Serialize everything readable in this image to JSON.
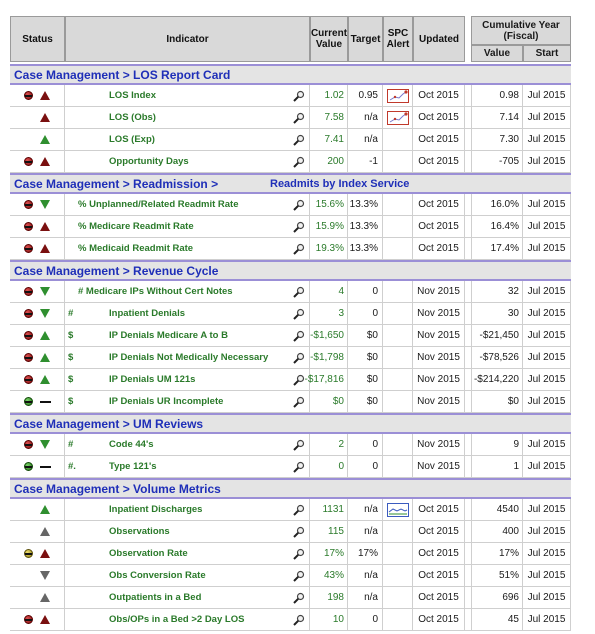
{
  "headers": {
    "status": "Status",
    "indicator": "Indicator",
    "current": "Current Value",
    "target": "Target",
    "spc": "SPC Alert",
    "updated": "Updated",
    "cumulative": "Cumulative Year (Fiscal)",
    "value": "Value",
    "start": "Start"
  },
  "sections": [
    {
      "title": "Case Management > LOS Report Card",
      "extra": "",
      "rows": [
        {
          "dot": "red",
          "trend": "up-red",
          "prefix": "",
          "name": "LOS Index",
          "indent": "deep",
          "current": "1.02",
          "target": "0.95",
          "spc": "red",
          "updated": "Oct 2015",
          "cum": "0.98",
          "start": "Jul 2015"
        },
        {
          "dot": "none",
          "trend": "up-red",
          "prefix": "",
          "name": "LOS (Obs)",
          "indent": "deep",
          "current": "7.58",
          "target": "n/a",
          "spc": "red",
          "updated": "Oct 2015",
          "cum": "7.14",
          "start": "Jul 2015"
        },
        {
          "dot": "none",
          "trend": "up-green",
          "prefix": "",
          "name": "LOS (Exp)",
          "indent": "deep",
          "current": "7.41",
          "target": "n/a",
          "spc": "",
          "updated": "Oct 2015",
          "cum": "7.30",
          "start": "Jul 2015"
        },
        {
          "dot": "red",
          "trend": "up-red",
          "prefix": "",
          "name": "Opportunity Days",
          "indent": "deep",
          "current": "200",
          "target": "-1",
          "spc": "",
          "updated": "Oct 2015",
          "cum": "-705",
          "start": "Jul 2015"
        }
      ]
    },
    {
      "title": "Case Management > Readmission >",
      "extra": "Readmits by Index Service",
      "rows": [
        {
          "dot": "red",
          "trend": "down-green",
          "prefix": "",
          "name": "% Unplanned/Related Readmit Rate",
          "indent": "none",
          "current": "15.6%",
          "target": "13.3%",
          "spc": "",
          "updated": "Oct 2015",
          "cum": "16.0%",
          "start": "Jul 2015"
        },
        {
          "dot": "red",
          "trend": "up-red",
          "prefix": "",
          "name": "% Medicare Readmit Rate",
          "indent": "none",
          "current": "15.9%",
          "target": "13.3%",
          "spc": "",
          "updated": "Oct 2015",
          "cum": "16.4%",
          "start": "Jul 2015"
        },
        {
          "dot": "red",
          "trend": "up-red",
          "prefix": "",
          "name": "% Medicaid Readmit Rate",
          "indent": "none",
          "current": "19.3%",
          "target": "13.3%",
          "spc": "",
          "updated": "Oct 2015",
          "cum": "17.4%",
          "start": "Jul 2015"
        }
      ]
    },
    {
      "title": "Case Management > Revenue Cycle",
      "extra": "",
      "rows": [
        {
          "dot": "red",
          "trend": "down-green",
          "prefix": "",
          "name": "# Medicare IPs Without Cert Notes",
          "indent": "none",
          "current": "4",
          "target": "0",
          "spc": "",
          "updated": "Nov 2015",
          "cum": "32",
          "start": "Jul 2015"
        },
        {
          "dot": "red",
          "trend": "down-green",
          "prefix": "#",
          "name": "Inpatient Denials",
          "indent": "deep",
          "current": "3",
          "target": "0",
          "spc": "",
          "updated": "Nov 2015",
          "cum": "30",
          "start": "Jul 2015"
        },
        {
          "dot": "red",
          "trend": "up-green",
          "prefix": "$",
          "name": "IP Denials Medicare A to B",
          "indent": "deep",
          "current": "-$1,650",
          "target": "$0",
          "spc": "",
          "updated": "Nov 2015",
          "cum": "-$21,450",
          "start": "Jul 2015"
        },
        {
          "dot": "red",
          "trend": "up-green",
          "prefix": "$",
          "name": "IP Denials Not Medically Necessary",
          "indent": "deep",
          "current": "-$1,798",
          "target": "$0",
          "spc": "",
          "updated": "Nov 2015",
          "cum": "-$78,526",
          "start": "Jul 2015"
        },
        {
          "dot": "red",
          "trend": "up-green",
          "prefix": "$",
          "name": "IP Denials UM 121s",
          "indent": "deep",
          "current": "-$17,816",
          "target": "$0",
          "spc": "",
          "updated": "Nov 2015",
          "cum": "-$214,220",
          "start": "Jul 2015"
        },
        {
          "dot": "green",
          "trend": "dash",
          "prefix": "$",
          "name": "IP Denials UR Incomplete",
          "indent": "deep",
          "current": "$0",
          "target": "$0",
          "spc": "",
          "updated": "Nov 2015",
          "cum": "$0",
          "start": "Jul 2015"
        }
      ]
    },
    {
      "title": "Case Management > UM Reviews",
      "extra": "",
      "rows": [
        {
          "dot": "red",
          "trend": "down-green",
          "prefix": "#",
          "name": "Code 44's",
          "indent": "deep",
          "current": "2",
          "target": "0",
          "spc": "",
          "updated": "Nov 2015",
          "cum": "9",
          "start": "Jul 2015"
        },
        {
          "dot": "green",
          "trend": "dash",
          "prefix": "#.",
          "name": "Type 121's",
          "indent": "deep",
          "current": "0",
          "target": "0",
          "spc": "",
          "updated": "Nov 2015",
          "cum": "1",
          "start": "Jul 2015"
        }
      ]
    },
    {
      "title": "Case Management > Volume Metrics",
      "extra": "",
      "rows": [
        {
          "dot": "none",
          "trend": "up-green",
          "prefix": "",
          "name": "Inpatient Discharges",
          "indent": "deep",
          "current": "1131",
          "target": "n/a",
          "spc": "blue",
          "updated": "Oct 2015",
          "cum": "4540",
          "start": "Jul 2015"
        },
        {
          "dot": "none",
          "trend": "up-gray",
          "prefix": "",
          "name": "Observations",
          "indent": "deep",
          "current": "115",
          "target": "n/a",
          "spc": "",
          "updated": "Oct 2015",
          "cum": "400",
          "start": "Jul 2015"
        },
        {
          "dot": "yellow",
          "trend": "up-red",
          "prefix": "",
          "name": "Observation Rate",
          "indent": "deep",
          "current": "17%",
          "target": "17%",
          "spc": "",
          "updated": "Oct 2015",
          "cum": "17%",
          "start": "Jul 2015"
        },
        {
          "dot": "none",
          "trend": "down-gray",
          "prefix": "",
          "name": "Obs Conversion Rate",
          "indent": "deep",
          "current": "43%",
          "target": "n/a",
          "spc": "",
          "updated": "Oct 2015",
          "cum": "51%",
          "start": "Jul 2015"
        },
        {
          "dot": "none",
          "trend": "up-gray",
          "prefix": "",
          "name": "Outpatients in a Bed",
          "indent": "deep",
          "current": "198",
          "target": "n/a",
          "spc": "",
          "updated": "Oct 2015",
          "cum": "696",
          "start": "Jul 2015"
        },
        {
          "dot": "red",
          "trend": "up-red",
          "prefix": "",
          "name": "Obs/OPs in a Bed >2 Day LOS",
          "indent": "deep",
          "current": "10",
          "target": "0",
          "spc": "",
          "updated": "Oct 2015",
          "cum": "45",
          "start": "Jul 2015"
        }
      ]
    }
  ]
}
